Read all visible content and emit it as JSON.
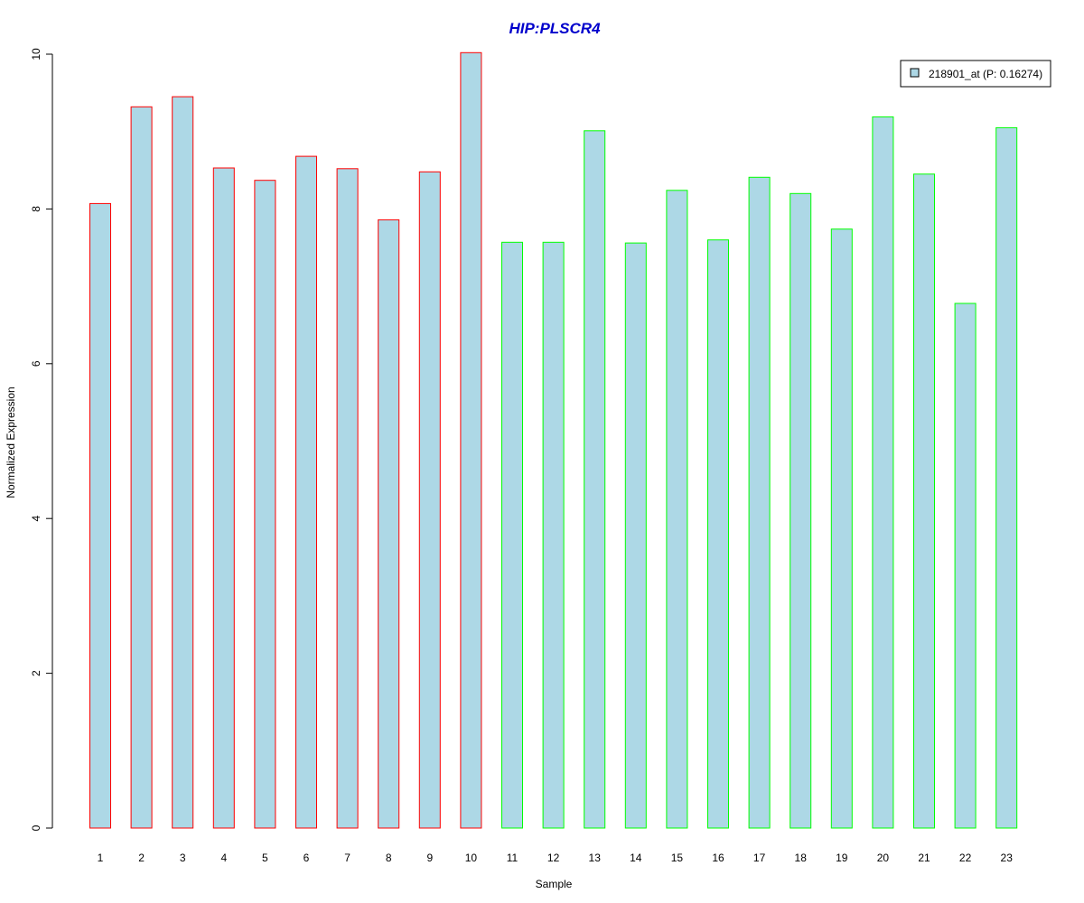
{
  "chart_data": {
    "type": "bar",
    "title": "HIP:PLSCR4",
    "xlabel": "Sample",
    "ylabel": "Normalized Expression",
    "ylim": [
      0,
      10
    ],
    "yticks": [
      0,
      2,
      4,
      6,
      8,
      10
    ],
    "categories": [
      "1",
      "2",
      "3",
      "4",
      "5",
      "6",
      "7",
      "8",
      "9",
      "10",
      "11",
      "12",
      "13",
      "14",
      "15",
      "16",
      "17",
      "18",
      "19",
      "20",
      "21",
      "22",
      "23"
    ],
    "series": [
      {
        "name": "218901_at (P: 0.16274)",
        "values": [
          8.07,
          9.32,
          9.45,
          8.53,
          8.37,
          8.68,
          8.52,
          7.86,
          8.48,
          10.02,
          7.57,
          7.57,
          9.01,
          7.56,
          8.24,
          7.6,
          8.41,
          8.2,
          7.74,
          9.19,
          8.45,
          6.78,
          9.05
        ],
        "fill": "#ADD8E6"
      }
    ],
    "groups": [
      {
        "samples": [
          "1",
          "2",
          "3",
          "4",
          "5",
          "6",
          "7",
          "8",
          "9",
          "10"
        ],
        "border_color": "#FF0000"
      },
      {
        "samples": [
          "11",
          "12",
          "13",
          "14",
          "15",
          "16",
          "17",
          "18",
          "19",
          "20",
          "21",
          "22",
          "23"
        ],
        "border_color": "#00FF00"
      }
    ],
    "legend_position": "top-right",
    "grid": false,
    "title_color": "#0000CC"
  }
}
